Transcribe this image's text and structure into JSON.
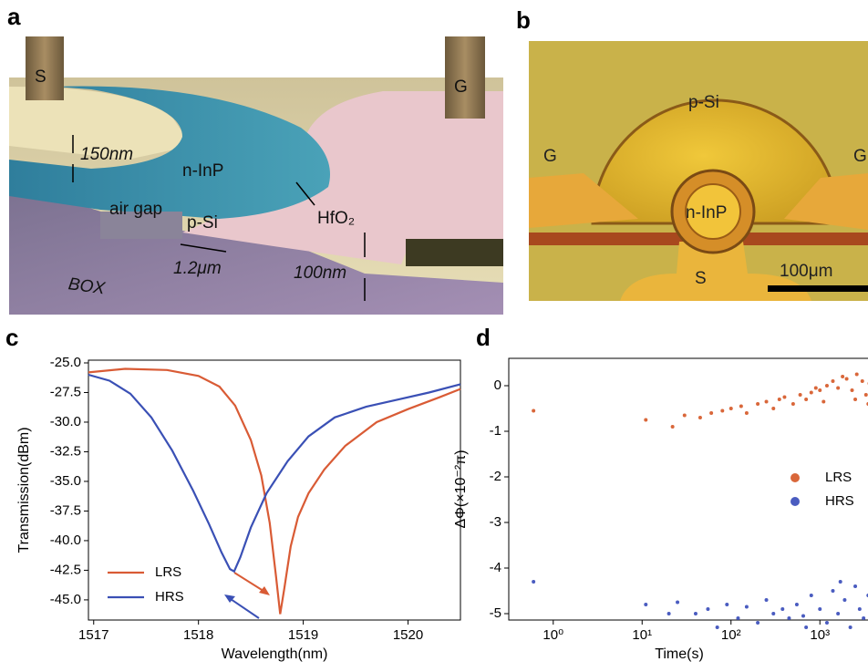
{
  "panels": {
    "a": {
      "label": "a",
      "texts": [
        "S",
        "G",
        "150nm",
        "n-InP",
        "air gap",
        "p-Si",
        "HfO₂",
        "1.2μm",
        "BOX",
        "100nm"
      ]
    },
    "b": {
      "label": "b",
      "texts": [
        "p-Si",
        "G",
        "G",
        "n-InP",
        "S",
        "100μm"
      ]
    }
  },
  "chart_data": [
    {
      "type": "line",
      "panel_label": "c",
      "x_label": "Wavelength(nm)",
      "y_label": "Transmission(dBm)",
      "xlim": [
        1516.95,
        1520.5
      ],
      "xticks": [
        1517,
        1518,
        1519,
        1520
      ],
      "ylim": [
        -46.7,
        -24.77
      ],
      "yticks": [
        {
          "value": -25,
          "label": "-25.0"
        },
        {
          "value": -27.5,
          "label": "-27.5"
        },
        {
          "value": -30,
          "label": "-30.0"
        },
        {
          "value": -32.5,
          "label": "-32.5"
        },
        {
          "value": -35,
          "label": "-35.0"
        },
        {
          "value": -37.5,
          "label": "-37.5"
        },
        {
          "value": -40,
          "label": "-40.0"
        },
        {
          "value": -42.5,
          "label": "-42.5"
        },
        {
          "value": -45,
          "label": "-45.0"
        }
      ],
      "legend": "lower left",
      "series": [
        {
          "name": "LRS",
          "color": "#d95b35",
          "x": [
            1516.95,
            1517.3,
            1517.7,
            1518.0,
            1518.2,
            1518.35,
            1518.5,
            1518.6,
            1518.68,
            1518.74,
            1518.78,
            1518.82,
            1518.88,
            1518.95,
            1519.05,
            1519.2,
            1519.4,
            1519.7,
            1520.0,
            1520.3,
            1520.5
          ],
          "values": [
            -25.8,
            -25.5,
            -25.6,
            -26.1,
            -27.0,
            -28.6,
            -31.5,
            -34.5,
            -38.5,
            -43.0,
            -46.2,
            -44.0,
            -40.5,
            -38.0,
            -36.0,
            -34.0,
            -32.0,
            -30.0,
            -28.9,
            -27.9,
            -27.2
          ]
        },
        {
          "name": "HRS",
          "color": "#3a50b5",
          "x": [
            1516.95,
            1517.15,
            1517.35,
            1517.55,
            1517.75,
            1517.95,
            1518.1,
            1518.22,
            1518.3,
            1518.34,
            1518.4,
            1518.5,
            1518.65,
            1518.85,
            1519.05,
            1519.3,
            1519.6,
            1519.9,
            1520.2,
            1520.5
          ],
          "values": [
            -26.0,
            -26.5,
            -27.6,
            -29.6,
            -32.4,
            -35.8,
            -38.6,
            -41.0,
            -42.4,
            -42.6,
            -41.4,
            -38.9,
            -36.0,
            -33.3,
            -31.2,
            -29.6,
            -28.7,
            -28.1,
            -27.5,
            -26.8
          ]
        }
      ]
    },
    {
      "type": "scatter",
      "panel_label": "d",
      "x_label": "Time(s)",
      "y_label": "ΔΦ(×10⁻²π)",
      "xlog": true,
      "xlim": [
        0.316,
        4200
      ],
      "xticks": [
        {
          "value": 1,
          "label": "10⁰"
        },
        {
          "value": 10,
          "label": "10¹"
        },
        {
          "value": 100,
          "label": "10²"
        },
        {
          "value": 1000,
          "label": "10³"
        }
      ],
      "ylim": [
        -5.14,
        0.6
      ],
      "yticks": [
        0,
        -1,
        -2,
        -3,
        -4,
        -5
      ],
      "legend": "center right",
      "series": [
        {
          "name": "LRS",
          "color": "#d9673a",
          "x": [
            0.6,
            11,
            22,
            30,
            45,
            60,
            80,
            100,
            130,
            150,
            200,
            250,
            300,
            350,
            400,
            500,
            600,
            700,
            800,
            900,
            1000,
            1100,
            1200,
            1400,
            1600,
            1800,
            2000,
            2300,
            2500,
            2600,
            3000,
            3300,
            3500,
            3600
          ],
          "values": [
            -0.55,
            -0.75,
            -0.9,
            -0.65,
            -0.7,
            -0.6,
            -0.55,
            -0.5,
            -0.45,
            -0.6,
            -0.4,
            -0.35,
            -0.5,
            -0.3,
            -0.25,
            -0.4,
            -0.2,
            -0.3,
            -0.15,
            -0.05,
            -0.1,
            -0.35,
            0,
            0.1,
            -0.05,
            0.2,
            0.15,
            -0.1,
            -0.3,
            0.25,
            0.1,
            -0.2,
            -0.4,
            0.05
          ]
        },
        {
          "name": "HRS",
          "color": "#4a5cc0",
          "x": [
            0.6,
            11,
            20,
            25,
            40,
            55,
            70,
            90,
            120,
            150,
            200,
            250,
            300,
            380,
            450,
            550,
            650,
            700,
            800,
            1000,
            1200,
            1400,
            1600,
            1700,
            1900,
            2200,
            2500,
            2800,
            3100,
            3500
          ],
          "values": [
            -4.3,
            -4.8,
            -5.0,
            -4.75,
            -5.0,
            -4.9,
            -5.3,
            -4.8,
            -5.1,
            -4.85,
            -5.2,
            -4.7,
            -5.0,
            -4.9,
            -5.1,
            -4.8,
            -5.05,
            -5.3,
            -4.6,
            -4.9,
            -5.2,
            -4.5,
            -5.0,
            -4.3,
            -4.7,
            -5.3,
            -4.4,
            -4.9,
            -5.1,
            -4.6
          ]
        }
      ]
    }
  ]
}
